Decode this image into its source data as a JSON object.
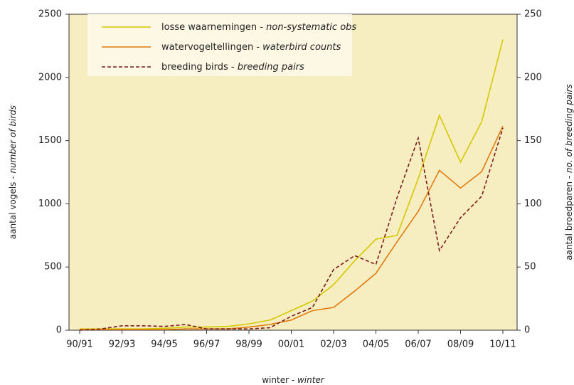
{
  "chart_data": {
    "type": "line",
    "categories": [
      "90/91",
      null,
      "92/93",
      null,
      "94/95",
      null,
      "96/97",
      null,
      "98/99",
      null,
      "00/01",
      null,
      "02/03",
      null,
      "04/05",
      null,
      "06/07",
      null,
      "08/09",
      null,
      "10/11"
    ],
    "series": [
      {
        "name": "losse waarnemingen - non-systematic obs",
        "color": "#d4c800",
        "values": [
          10,
          10,
          10,
          10,
          15,
          25,
          25,
          30,
          50,
          80,
          155,
          230,
          360,
          550,
          720,
          750,
          1200,
          1700,
          1330,
          1650,
          2300
        ]
      },
      {
        "name": "watervogeltellingen - waterbird counts",
        "color": "#e07a10",
        "values": [
          5,
          5,
          5,
          5,
          5,
          10,
          10,
          10,
          25,
          45,
          80,
          155,
          180,
          310,
          450,
          700,
          940,
          1265,
          1125,
          1255,
          1615
        ]
      },
      {
        "name": "breeding birds - breeding pairs",
        "color": "#7a1a1a",
        "axis": "y2",
        "dashed": true,
        "values": [
          0,
          1,
          3.5,
          3.5,
          3,
          4.5,
          1,
          1,
          1,
          2,
          11,
          18,
          48,
          59,
          52,
          105,
          152,
          63,
          89,
          106,
          160
        ]
      }
    ],
    "xlabel": "winter - winter",
    "ylabel": "aantal vogels - number of birds",
    "y2label": "aantal broedparen - no. of breeding pairs",
    "ylim": [
      0,
      2500
    ],
    "yticks": [
      0,
      500,
      1000,
      1500,
      2000,
      2500
    ],
    "y2lim": [
      0,
      250
    ],
    "y2ticks": [
      0,
      50,
      100,
      150,
      200,
      250
    ],
    "legend": "top-left",
    "background": "#f6eec0"
  }
}
